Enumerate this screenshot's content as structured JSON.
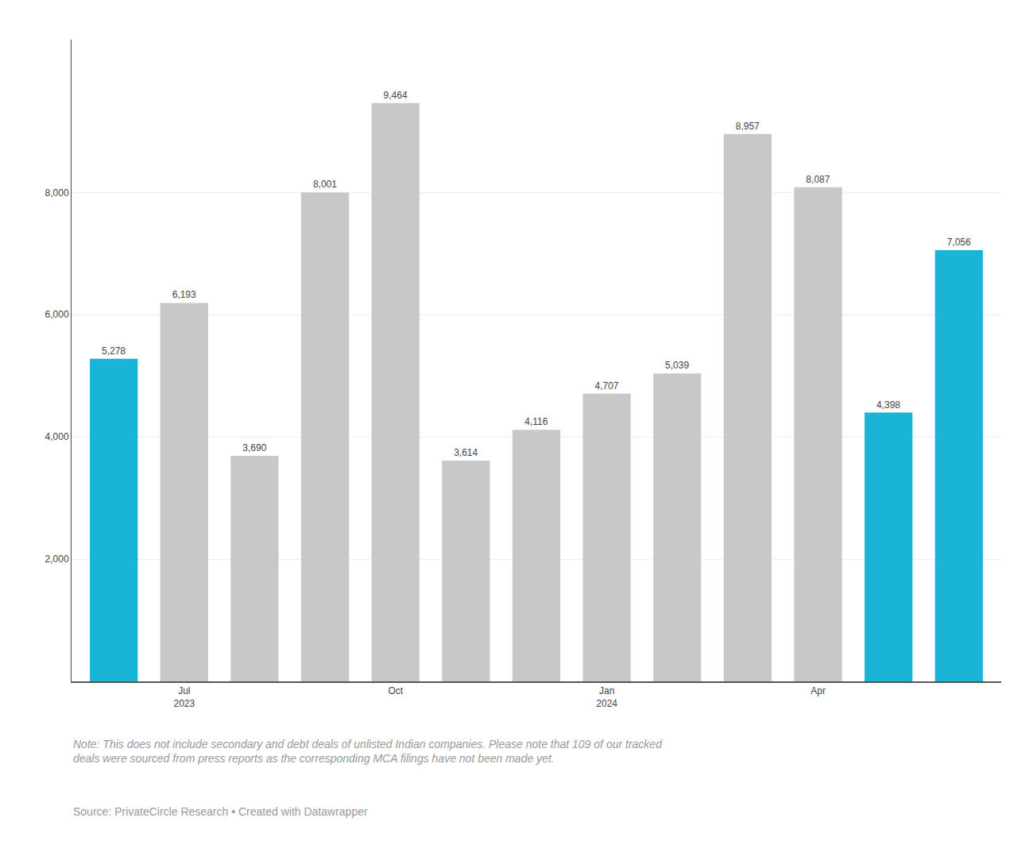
{
  "chart_data": {
    "type": "bar",
    "categories": [
      null,
      "Jul\n2023",
      null,
      null,
      "Oct",
      null,
      null,
      "Jan\n2024",
      null,
      null,
      "Apr",
      null,
      null
    ],
    "values": [
      5278,
      6193,
      3690,
      8001,
      9464,
      3614,
      4116,
      4707,
      5039,
      8957,
      8087,
      4398,
      7056
    ],
    "value_labels": [
      "5,278",
      "6,193",
      "3,690",
      "8,001",
      "9,464",
      "3,614",
      "4,116",
      "4,707",
      "5,039",
      "8,957",
      "8,087",
      "4,398",
      "7,056"
    ],
    "data_labels": true,
    "colors": [
      "#1ab4d7",
      "#c8c8c8",
      "#c8c8c8",
      "#c8c8c8",
      "#c8c8c8",
      "#c8c8c8",
      "#c8c8c8",
      "#c8c8c8",
      "#c8c8c8",
      "#c8c8c8",
      "#c8c8c8",
      "#1ab4d7",
      "#1ab4d7"
    ],
    "ylim": [
      0,
      10500
    ],
    "yticks": [
      {
        "value": 2000,
        "label": "2,000"
      },
      {
        "value": 4000,
        "label": "4,000"
      },
      {
        "value": 6000,
        "label": "6,000"
      },
      {
        "value": 8000,
        "label": "8,000"
      }
    ],
    "grid": true,
    "annotations": [
      "Note: This does not include secondary and debt deals of unlisted Indian companies. Please note that 109 of our tracked\ndeals were sourced from press reports as the corresponding MCA filings have not been made yet.",
      "Source: PrivateCircle Research • Created with Datawrapper"
    ]
  }
}
